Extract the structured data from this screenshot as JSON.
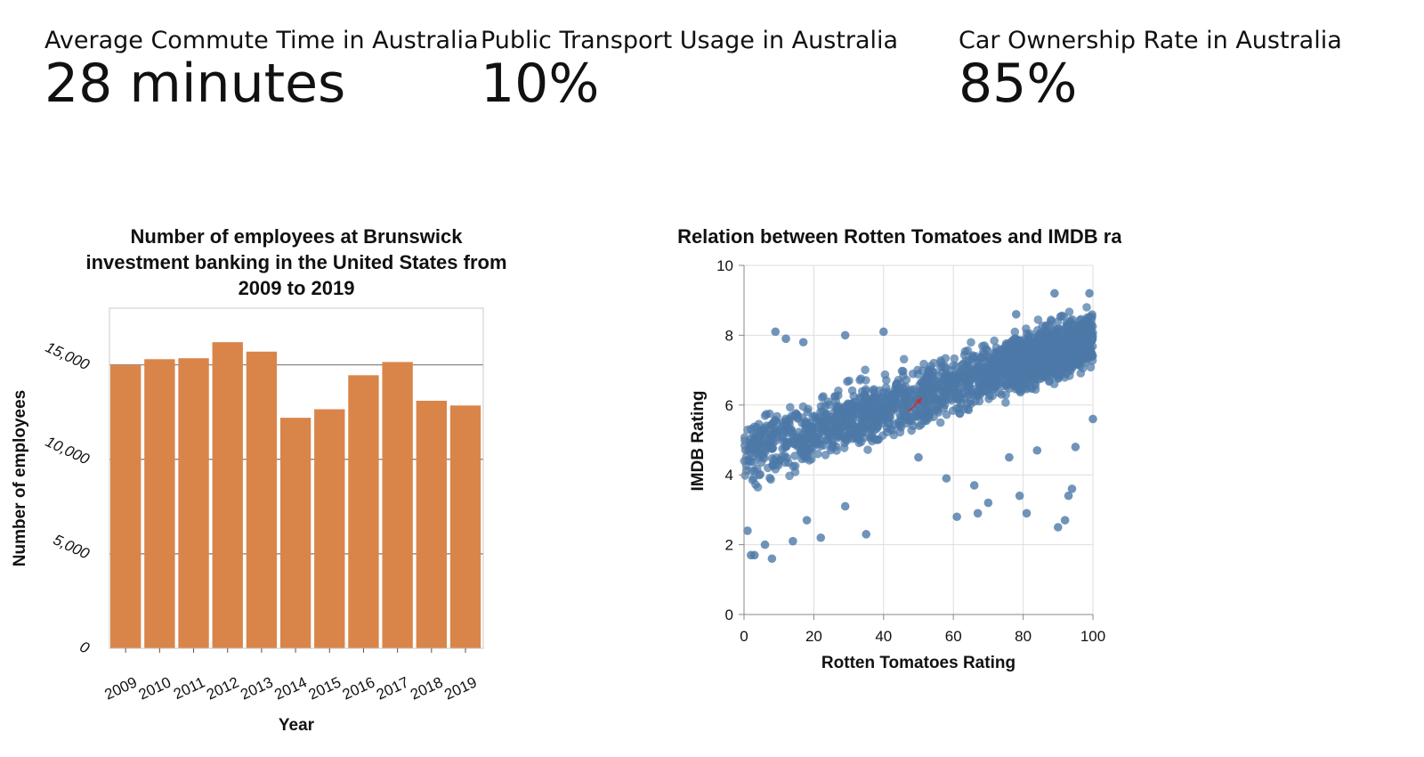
{
  "kpis": [
    {
      "label": "Average Commute Time in Australia",
      "value": "28 minutes"
    },
    {
      "label": "Public Transport Usage in Australia",
      "value": "10%"
    },
    {
      "label": "Car Ownership Rate in Australia",
      "value": "85%"
    }
  ],
  "chart_data": [
    {
      "type": "bar",
      "title": [
        "Number of employees at Brunswick",
        "investment banking in the United States from",
        "2009 to 2019"
      ],
      "xlabel": "Year",
      "ylabel": "Number of employees",
      "categories": [
        "2009",
        "2010",
        "2011",
        "2012",
        "2013",
        "2014",
        "2015",
        "2016",
        "2017",
        "2018",
        "2019"
      ],
      "values": [
        15000,
        15300,
        15350,
        16200,
        15700,
        12200,
        12650,
        14450,
        15150,
        13100,
        12850
      ],
      "ylim": [
        0,
        18000
      ],
      "yticks": [
        0,
        5000,
        10000,
        15000
      ],
      "ytick_labels": [
        "0",
        "5,000",
        "10,000",
        "15,000"
      ],
      "bar_color": "#d9854a",
      "grid": "horizontal"
    },
    {
      "type": "scatter",
      "title": "Relation between Rotten Tomatoes and IMDB rating",
      "xlabel": "Rotten Tomatoes Rating",
      "ylabel": "IMDB Rating",
      "xlim": [
        0,
        100
      ],
      "ylim": [
        0,
        10
      ],
      "xticks": [
        0,
        20,
        40,
        60,
        80,
        100
      ],
      "yticks": [
        0,
        2,
        4,
        6,
        8,
        10
      ],
      "point_color": "#4c78a8",
      "grid": "both",
      "trend": {
        "slope": 0.033,
        "intercept": 4.6
      },
      "outliers": [
        {
          "x": 1,
          "y": 2.4
        },
        {
          "x": 2,
          "y": 1.7
        },
        {
          "x": 3,
          "y": 1.7
        },
        {
          "x": 6,
          "y": 2.0
        },
        {
          "x": 8,
          "y": 1.6
        },
        {
          "x": 9,
          "y": 8.1
        },
        {
          "x": 12,
          "y": 7.9
        },
        {
          "x": 17,
          "y": 7.8
        },
        {
          "x": 14,
          "y": 2.1
        },
        {
          "x": 18,
          "y": 2.7
        },
        {
          "x": 22,
          "y": 2.2
        },
        {
          "x": 29,
          "y": 3.1
        },
        {
          "x": 29,
          "y": 8.0
        },
        {
          "x": 35,
          "y": 2.3
        },
        {
          "x": 40,
          "y": 8.1
        },
        {
          "x": 50,
          "y": 4.5
        },
        {
          "x": 58,
          "y": 3.9
        },
        {
          "x": 61,
          "y": 2.8
        },
        {
          "x": 66,
          "y": 3.7
        },
        {
          "x": 67,
          "y": 2.9
        },
        {
          "x": 70,
          "y": 3.2
        },
        {
          "x": 76,
          "y": 4.5
        },
        {
          "x": 78,
          "y": 8.6
        },
        {
          "x": 79,
          "y": 3.4
        },
        {
          "x": 81,
          "y": 2.9
        },
        {
          "x": 84,
          "y": 4.7
        },
        {
          "x": 89,
          "y": 9.2
        },
        {
          "x": 90,
          "y": 2.5
        },
        {
          "x": 92,
          "y": 2.7
        },
        {
          "x": 93,
          "y": 3.4
        },
        {
          "x": 94,
          "y": 3.6
        },
        {
          "x": 99,
          "y": 9.2
        },
        {
          "x": 95,
          "y": 4.8
        },
        {
          "x": 100,
          "y": 5.6
        }
      ],
      "annotation": {
        "type": "arrow",
        "from": [
          47,
          5.8
        ],
        "to": [
          51,
          6.2
        ],
        "color": "#d62728"
      }
    }
  ]
}
